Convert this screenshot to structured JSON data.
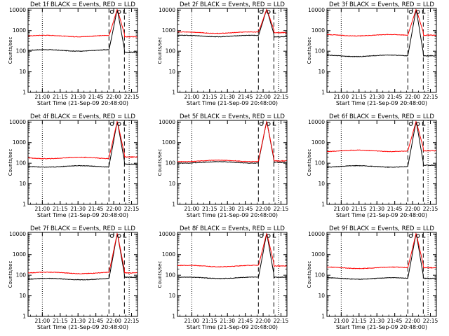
{
  "colors": {
    "events": "#000000",
    "lld": "#ff0000",
    "background": "#ffffff"
  },
  "chart_data": [
    {
      "type": "line",
      "title": "Det 1f BLACK = Events, RED = LLD",
      "xlabel": "Start Time (21-Sep-09 20:48:00)",
      "ylabel": "Counts/sec",
      "x_ticks": [
        "21:00",
        "21:15",
        "21:30",
        "21:45",
        "22:00",
        "22:15"
      ],
      "y_ticks": [
        "1",
        "10",
        "100",
        "1000",
        "10000"
      ],
      "y_scale": "log",
      "ylim": [
        1,
        12000
      ],
      "markers": {
        "dotted": [
          "21:00",
          "22:13"
        ],
        "dashed": [
          "21:56",
          "22:09"
        ]
      },
      "flare_peak_at": "22:03",
      "series": [
        {
          "name": "Events",
          "baseline": 110,
          "post_flare": 90
        },
        {
          "name": "LLD",
          "baseline": 550,
          "post_flare": 500
        }
      ]
    },
    {
      "type": "line",
      "title": "Det 2f BLACK = Events, RED = LLD",
      "xlabel": "Start Time (21-Sep-09 20:48:00)",
      "ylabel": "Counts/sec",
      "x_ticks": [
        "21:00",
        "21:15",
        "21:30",
        "21:45",
        "22:00",
        "22:15"
      ],
      "y_ticks": [
        "1",
        "10",
        "100",
        "1000",
        "10000"
      ],
      "y_scale": "log",
      "ylim": [
        1,
        12000
      ],
      "markers": {
        "dotted": [
          "21:00",
          "22:13"
        ],
        "dashed": [
          "21:56",
          "22:09"
        ]
      },
      "flare_peak_at": "22:03",
      "series": [
        {
          "name": "Events",
          "baseline": 550,
          "post_flare": 500
        },
        {
          "name": "LLD",
          "baseline": 800,
          "post_flare": 800
        }
      ]
    },
    {
      "type": "line",
      "title": "Det 3f BLACK = Events, RED = LLD",
      "xlabel": "Start Time (21-Sep-09 20:48:00)",
      "ylabel": "Counts/sec",
      "x_ticks": [
        "21:00",
        "21:15",
        "21:30",
        "21:45",
        "22:00",
        "22:15"
      ],
      "y_ticks": [
        "1",
        "10",
        "100",
        "1000",
        "10000"
      ],
      "y_scale": "log",
      "ylim": [
        1,
        12000
      ],
      "markers": {
        "dotted": [
          "21:00",
          "22:13"
        ],
        "dashed": [
          "21:56",
          "22:09"
        ]
      },
      "flare_peak_at": "22:03",
      "series": [
        {
          "name": "Events",
          "baseline": 60,
          "post_flare": 60
        },
        {
          "name": "LLD",
          "baseline": 600,
          "post_flare": 600
        }
      ]
    },
    {
      "type": "line",
      "title": "Det 4f BLACK = Events, RED = LLD",
      "xlabel": "Start Time (21-Sep-09 20:48:00)",
      "ylabel": "Counts/sec",
      "x_ticks": [
        "21:00",
        "21:15",
        "21:30",
        "21:45",
        "22:00",
        "22:15"
      ],
      "y_ticks": [
        "1",
        "10",
        "100",
        "1000",
        "10000"
      ],
      "y_scale": "log",
      "ylim": [
        1,
        12000
      ],
      "markers": {
        "dotted": [
          "21:00",
          "22:13"
        ],
        "dashed": [
          "21:56",
          "22:09"
        ]
      },
      "flare_peak_at": "22:03",
      "series": [
        {
          "name": "Events",
          "baseline": 70,
          "post_flare": 90
        },
        {
          "name": "LLD",
          "baseline": 180,
          "post_flare": 200
        }
      ]
    },
    {
      "type": "line",
      "title": "Det 5f BLACK = Events, RED = LLD",
      "xlabel": "Start Time (21-Sep-09 20:48:00)",
      "ylabel": "Counts/sec",
      "x_ticks": [
        "21:00",
        "21:15",
        "21:30",
        "21:45",
        "22:00",
        "22:15"
      ],
      "y_ticks": [
        "1",
        "10",
        "100",
        "1000",
        "10000"
      ],
      "y_scale": "log",
      "ylim": [
        1,
        12000
      ],
      "markers": {
        "dotted": [
          "21:00",
          "22:13"
        ],
        "dashed": [
          "21:56",
          "22:09"
        ]
      },
      "flare_peak_at": "22:03",
      "series": [
        {
          "name": "Events",
          "baseline": 110,
          "post_flare": 110
        },
        {
          "name": "LLD",
          "baseline": 130,
          "post_flare": 130
        }
      ]
    },
    {
      "type": "line",
      "title": "Det 6f BLACK = Events, RED = LLD",
      "xlabel": "Start Time (21-Sep-09 20:48:00)",
      "ylabel": "Counts/sec",
      "x_ticks": [
        "21:00",
        "21:15",
        "21:30",
        "21:45",
        "22:00",
        "22:15"
      ],
      "y_ticks": [
        "1",
        "10",
        "100",
        "1000",
        "10000"
      ],
      "y_scale": "log",
      "ylim": [
        1,
        12000
      ],
      "markers": {
        "dotted": [
          "21:00",
          "22:13"
        ],
        "dashed": [
          "21:56",
          "22:09"
        ]
      },
      "flare_peak_at": "22:03",
      "series": [
        {
          "name": "Events",
          "baseline": 70,
          "post_flare": 80
        },
        {
          "name": "LLD",
          "baseline": 400,
          "post_flare": 400
        }
      ]
    },
    {
      "type": "line",
      "title": "Det 7f BLACK = Events, RED = LLD",
      "xlabel": "Start Time (21-Sep-09 20:48:00)",
      "ylabel": "Counts/sec",
      "x_ticks": [
        "21:00",
        "21:15",
        "21:30",
        "21:45",
        "22:00",
        "22:15"
      ],
      "y_ticks": [
        "1",
        "10",
        "100",
        "1000",
        "10000"
      ],
      "y_scale": "log",
      "ylim": [
        1,
        12000
      ],
      "markers": {
        "dotted": [
          "21:00",
          "22:13"
        ],
        "dashed": [
          "21:56",
          "22:09"
        ]
      },
      "flare_peak_at": "22:03",
      "series": [
        {
          "name": "Events",
          "baseline": 65,
          "post_flare": 80
        },
        {
          "name": "LLD",
          "baseline": 130,
          "post_flare": 130
        }
      ]
    },
    {
      "type": "line",
      "title": "Det 8f BLACK = Events, RED = LLD",
      "xlabel": "Start Time (21-Sep-09 20:48:00)",
      "ylabel": "Counts/sec",
      "x_ticks": [
        "21:00",
        "21:15",
        "21:30",
        "21:45",
        "22:00",
        "22:15"
      ],
      "y_ticks": [
        "1",
        "10",
        "100",
        "1000",
        "10000"
      ],
      "y_scale": "log",
      "ylim": [
        1,
        12000
      ],
      "markers": {
        "dotted": [
          "21:00",
          "22:13"
        ],
        "dashed": [
          "21:56",
          "22:09"
        ]
      },
      "flare_peak_at": "22:03",
      "series": [
        {
          "name": "Events",
          "baseline": 75,
          "post_flare": 80
        },
        {
          "name": "LLD",
          "baseline": 280,
          "post_flare": 280
        }
      ]
    },
    {
      "type": "line",
      "title": "Det 9f BLACK = Events, RED = LLD",
      "xlabel": "Start Time (21-Sep-09 20:48:00)",
      "ylabel": "Counts/sec",
      "x_ticks": [
        "21:00",
        "21:15",
        "21:30",
        "21:45",
        "22:00",
        "22:15"
      ],
      "y_ticks": [
        "1",
        "10",
        "100",
        "1000",
        "10000"
      ],
      "y_scale": "log",
      "ylim": [
        1,
        12000
      ],
      "markers": {
        "dotted": [
          "21:00",
          "22:13"
        ],
        "dashed": [
          "21:56",
          "22:09"
        ]
      },
      "flare_peak_at": "22:03",
      "series": [
        {
          "name": "Events",
          "baseline": 70,
          "post_flare": 70
        },
        {
          "name": "LLD",
          "baseline": 230,
          "post_flare": 230
        }
      ]
    }
  ]
}
